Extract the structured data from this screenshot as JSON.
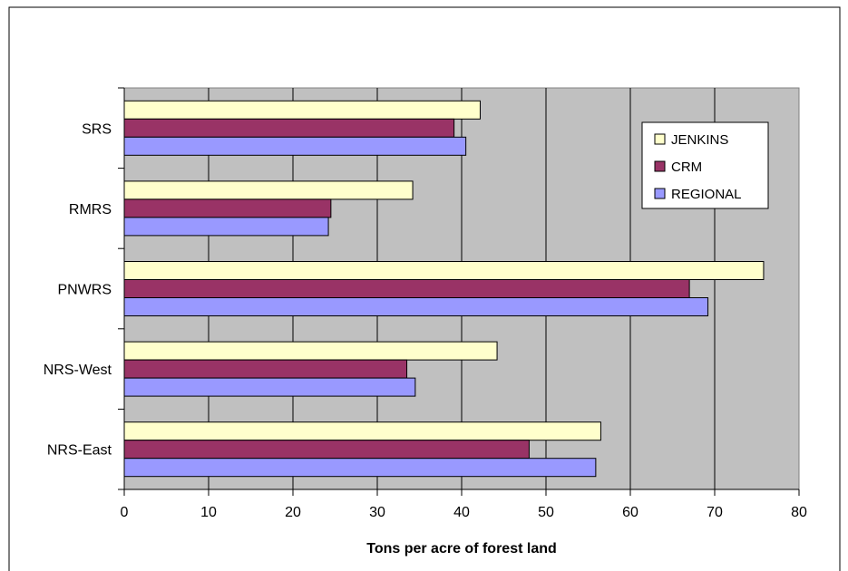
{
  "chart_data": {
    "type": "bar",
    "orientation": "horizontal",
    "title": "",
    "xlabel": "Tons per acre of forest land",
    "ylabel": "",
    "categories": [
      "SRS",
      "RMRS",
      "PNWRS",
      "NRS-West",
      "NRS-East"
    ],
    "series": [
      {
        "name": "JENKINS",
        "color": "#ffffcc",
        "values": [
          42.2,
          34.2,
          75.8,
          44.2,
          56.5
        ]
      },
      {
        "name": "CRM",
        "color": "#993366",
        "values": [
          39.1,
          24.5,
          67.0,
          33.5,
          48.0
        ]
      },
      {
        "name": "REGIONAL",
        "color": "#9999ff",
        "values": [
          40.5,
          24.2,
          69.2,
          34.5,
          55.9
        ]
      }
    ],
    "xlim": [
      0,
      80
    ],
    "xticks": [
      0,
      10,
      20,
      30,
      40,
      50,
      60,
      70,
      80
    ],
    "grid": true,
    "plot_background": "#c0c0c0",
    "legend_position": "right",
    "legend_order": [
      "JENKINS",
      "CRM",
      "REGIONAL"
    ]
  }
}
